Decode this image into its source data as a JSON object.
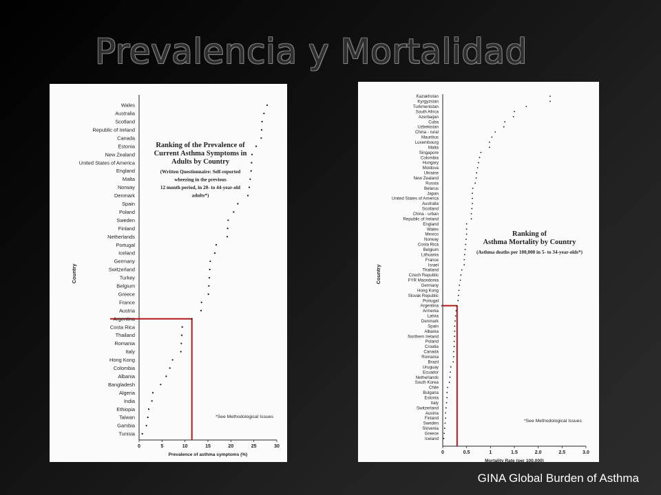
{
  "slide": {
    "title": "Prevalencia y Mortalidad",
    "source": "GINA Global Burden of Asthma"
  },
  "chart_data": [
    {
      "type": "scatter",
      "title": "Ranking of the Prevalence of Current Asthma Symptoms in Adults by Country",
      "subtitle": "(Written Questionnaire: Self-reported wheezing in the previous 12 month period, in 20- to 44-year-old adults*)",
      "subtitle_lines": [
        "(Written Questionnaire: Self-reported",
        "wheezing in the previous",
        "12 month period, in 20- to 44-year-old",
        "adults*)"
      ],
      "title_lines": [
        "Ranking of the Prevalence of",
        "Current Asthma Symptoms in",
        "Adults by Country"
      ],
      "note": "*See Methodological Issues",
      "xlabel": "Prevalence of asthma symptoms (%)",
      "ylabel": "Country",
      "xlim": [
        0,
        30
      ],
      "xticks": [
        0,
        5,
        10,
        15,
        20,
        25,
        30
      ],
      "highlight": {
        "category": "Argentina",
        "value": 11.5
      },
      "categories": [
        "Wales",
        "Australia",
        "Scotland",
        "Republic of Ireland",
        "Canada",
        "Estonia",
        "New Zealand",
        "United States of America",
        "England",
        "Malta",
        "Norway",
        "Denmark",
        "Spain",
        "Poland",
        "Sweden",
        "Finland",
        "Netherlands",
        "Portugal",
        "Iceland",
        "Germany",
        "Switzerland",
        "Turkey",
        "Belgium",
        "Greece",
        "France",
        "Austria",
        "Argentina",
        "Costa Rica",
        "Thailand",
        "Romania",
        "Italy",
        "Hong Kong",
        "Colombia",
        "Albania",
        "Bangladesh",
        "Algeria",
        "India",
        "Ethiopia",
        "Taiwan",
        "Gambia",
        "Tunisia"
      ],
      "values": [
        27.9,
        27.2,
        26.8,
        26.7,
        26.6,
        25.5,
        24.6,
        24.5,
        24.4,
        24.2,
        24.0,
        23.7,
        21.5,
        20.6,
        19.4,
        19.3,
        19.2,
        16.8,
        16.5,
        15.5,
        15.4,
        15.3,
        15.2,
        15.1,
        13.6,
        13.5,
        11.5,
        9.4,
        9.3,
        9.2,
        9.1,
        7.3,
        6.7,
        5.9,
        4.7,
        3.0,
        2.8,
        2.1,
        1.9,
        1.6,
        0.7
      ]
    },
    {
      "type": "scatter",
      "title": "Ranking of Asthma Mortality by Country",
      "subtitle": "(Asthma deaths per 100,000 in 5- to 34-year-olds*)",
      "title_lines": [
        "Ranking of",
        "Asthma Mortality by Country"
      ],
      "note": "*See Methodological Issues",
      "xlabel": "Mortality Rate (per 100,000)",
      "ylabel": "Country",
      "xlim": [
        0,
        3.0
      ],
      "xticks": [
        "0",
        "0.5",
        "1",
        "1.5",
        "2.0",
        "2.5",
        "3.0"
      ],
      "highlight": {
        "category": "Argentina",
        "value": 0.3
      },
      "categories": [
        "Kazakhstan",
        "Kyrgyzstan",
        "Turkmenistan",
        "South Africa",
        "Azerbaijan",
        "Cuba",
        "Uzbekistan",
        "China - rural",
        "Mauritius",
        "Luxembourg",
        "Malta",
        "Singapore",
        "Colombia",
        "Hungary",
        "Moldova",
        "Ukraine",
        "New Zealand",
        "Russia",
        "Belarus",
        "Japan",
        "United States of America",
        "Australia",
        "Scotland",
        "China - urban",
        "Republic of Ireland",
        "England",
        "Wales",
        "Mexico",
        "Norway",
        "Costa Rica",
        "Belgium",
        "Lithuania",
        "France",
        "Israel",
        "Thailand",
        "Czech Republic",
        "FYR Macedonia",
        "Germany",
        "Hong Kong",
        "Slovak Republic",
        "Portugal",
        "Argentina",
        "Armenia",
        "Latvia",
        "Denmark",
        "Spain",
        "Albania",
        "Northern Ireland",
        "Poland",
        "Croatia",
        "Canada",
        "Romania",
        "Brazil",
        "Uruguay",
        "Ecuador",
        "Netherlands",
        "South Korea",
        "Chile",
        "Bulgaria",
        "Estonia",
        "Italy",
        "Switzerland",
        "Austria",
        "Finland",
        "Sweden",
        "Slovenia",
        "Greece",
        "Iceland"
      ],
      "values": [
        2.25,
        2.25,
        1.75,
        1.5,
        1.48,
        1.3,
        1.28,
        1.1,
        1.03,
        0.98,
        0.98,
        0.8,
        0.77,
        0.75,
        0.73,
        0.71,
        0.7,
        0.68,
        0.63,
        0.62,
        0.62,
        0.62,
        0.61,
        0.6,
        0.6,
        0.5,
        0.5,
        0.5,
        0.49,
        0.48,
        0.47,
        0.46,
        0.45,
        0.45,
        0.4,
        0.38,
        0.37,
        0.35,
        0.34,
        0.33,
        0.32,
        0.3,
        0.28,
        0.27,
        0.26,
        0.25,
        0.25,
        0.25,
        0.24,
        0.24,
        0.23,
        0.23,
        0.22,
        0.17,
        0.16,
        0.15,
        0.14,
        0.1,
        0.09,
        0.09,
        0.08,
        0.07,
        0.06,
        0.06,
        0.05,
        0.04,
        0.03,
        0.02
      ]
    }
  ]
}
